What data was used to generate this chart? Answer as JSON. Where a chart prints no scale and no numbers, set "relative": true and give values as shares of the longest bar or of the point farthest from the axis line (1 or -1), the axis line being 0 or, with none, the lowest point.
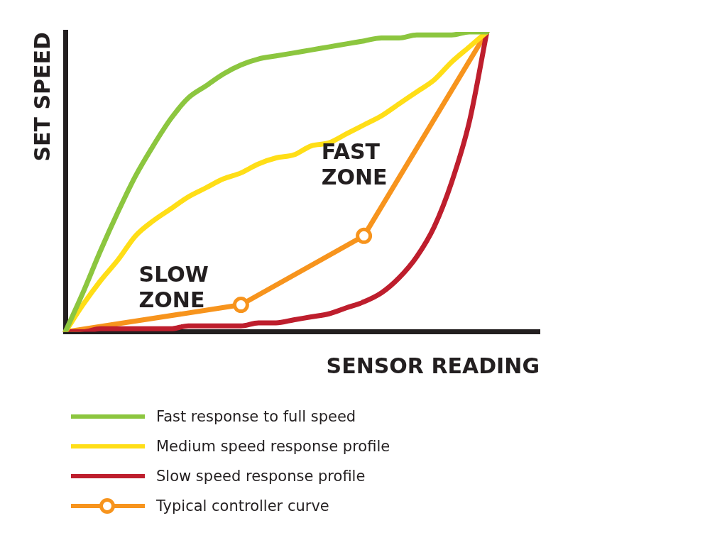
{
  "chart_data": {
    "type": "line",
    "relative": true,
    "xlabel": "SENSOR READING",
    "ylabel": "SET SPEED",
    "categories": [
      null,
      null,
      null,
      null,
      null,
      null,
      null,
      null,
      null,
      null,
      null,
      null,
      null,
      null,
      null,
      null,
      null,
      null,
      null,
      null,
      null,
      null,
      null,
      null,
      null,
      null,
      null,
      null
    ],
    "series": [
      {
        "name": "Fast response to full speed",
        "color": "#8cc63f",
        "marker": "none",
        "values": [
          0,
          0.13,
          0.27,
          0.4,
          0.52,
          0.62,
          0.71,
          0.78,
          0.82,
          0.86,
          0.89,
          0.91,
          0.92,
          0.93,
          0.94,
          0.95,
          0.96,
          0.97,
          0.98,
          0.98,
          0.99,
          0.99,
          0.99,
          1.0,
          1.0,
          null,
          null,
          null
        ]
      },
      {
        "name": "Medium speed response profile",
        "color": "#ffde17",
        "marker": "none",
        "values": [
          0,
          0.09,
          0.17,
          0.24,
          0.32,
          0.37,
          0.41,
          0.45,
          0.48,
          0.51,
          0.53,
          0.56,
          0.58,
          0.59,
          0.62,
          0.63,
          0.66,
          0.69,
          0.72,
          0.76,
          0.8,
          0.84,
          0.9,
          0.95,
          1.0,
          null,
          null,
          null
        ]
      },
      {
        "name": "Slow speed response profile",
        "color": "#be1e2d",
        "marker": "none",
        "values": [
          0,
          0.0,
          0.01,
          0.01,
          0.01,
          0.01,
          0.01,
          0.02,
          0.02,
          0.02,
          0.02,
          0.03,
          0.03,
          0.04,
          0.05,
          0.06,
          0.08,
          0.1,
          0.13,
          0.18,
          0.25,
          0.35,
          0.5,
          0.7,
          1.0,
          null,
          null,
          null
        ]
      },
      {
        "name": "Typical controller curve",
        "color": "#f7941d",
        "marker": "circle",
        "values": [
          0,
          null,
          null,
          null,
          null,
          null,
          null,
          null,
          null,
          null,
          0.09,
          null,
          null,
          null,
          null,
          null,
          null,
          0.32,
          null,
          null,
          null,
          null,
          null,
          null,
          1.0,
          null,
          null,
          null
        ]
      }
    ],
    "legend": "bottom",
    "grid": false,
    "annotations": [
      "SLOW ZONE",
      "FAST ZONE"
    ]
  }
}
